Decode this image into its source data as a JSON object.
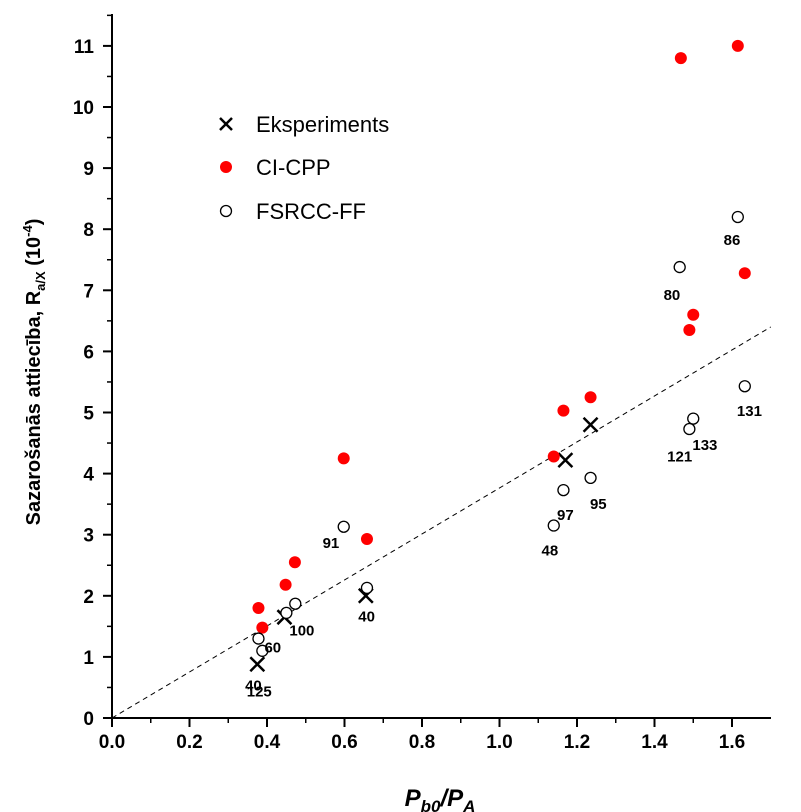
{
  "chart_data": {
    "type": "scatter",
    "xlabel": {
      "main": "P",
      "sub1": "b0",
      "sep": "/P",
      "sub2": "A"
    },
    "ylabel": {
      "main": "Sazarošanās attiecība, R",
      "sub": "a/X",
      "unit_open": " (10",
      "exp": "-4",
      "unit_close": ")"
    },
    "xlim": [
      0.0,
      1.7
    ],
    "ylim": [
      0,
      11.5
    ],
    "x_ticks": [
      "0.0",
      "0.2",
      "0.4",
      "0.6",
      "0.8",
      "1.0",
      "1.2",
      "1.4",
      "1.6"
    ],
    "y_ticks": [
      "0",
      "1",
      "2",
      "3",
      "4",
      "5",
      "6",
      "7",
      "8",
      "9",
      "10",
      "11"
    ],
    "grid": false,
    "legend_position": "upper-left",
    "series": [
      {
        "name": "Eksperiments",
        "marker": "cross",
        "color": "#000000",
        "points": [
          {
            "x": 0.375,
            "y": 0.88
          },
          {
            "x": 0.445,
            "y": 1.65
          },
          {
            "x": 0.655,
            "y": 2.0
          },
          {
            "x": 1.17,
            "y": 4.22
          },
          {
            "x": 1.235,
            "y": 4.8
          }
        ]
      },
      {
        "name": "CI-CPP",
        "marker": "filled-circle",
        "color": "#ff0000",
        "points": [
          {
            "x": 0.378,
            "y": 1.8
          },
          {
            "x": 0.388,
            "y": 1.48
          },
          {
            "x": 0.448,
            "y": 2.18
          },
          {
            "x": 0.472,
            "y": 2.55
          },
          {
            "x": 0.598,
            "y": 4.25
          },
          {
            "x": 0.658,
            "y": 2.93
          },
          {
            "x": 1.14,
            "y": 4.28
          },
          {
            "x": 1.165,
            "y": 5.03
          },
          {
            "x": 1.235,
            "y": 5.25
          },
          {
            "x": 1.468,
            "y": 10.8
          },
          {
            "x": 1.49,
            "y": 6.35
          },
          {
            "x": 1.5,
            "y": 6.6
          },
          {
            "x": 1.615,
            "y": 11.0
          },
          {
            "x": 1.633,
            "y": 7.28
          }
        ]
      },
      {
        "name": "FSRCC-FF",
        "marker": "open-circle",
        "color": "#000000",
        "points": [
          {
            "x": 0.378,
            "y": 1.3
          },
          {
            "x": 0.388,
            "y": 1.1
          },
          {
            "x": 0.45,
            "y": 1.72
          },
          {
            "x": 0.473,
            "y": 1.87
          },
          {
            "x": 0.598,
            "y": 3.13
          },
          {
            "x": 0.658,
            "y": 2.13
          },
          {
            "x": 1.14,
            "y": 3.15
          },
          {
            "x": 1.165,
            "y": 3.73
          },
          {
            "x": 1.235,
            "y": 3.93
          },
          {
            "x": 1.465,
            "y": 7.38
          },
          {
            "x": 1.49,
            "y": 4.73
          },
          {
            "x": 1.5,
            "y": 4.9
          },
          {
            "x": 1.615,
            "y": 8.2
          },
          {
            "x": 1.633,
            "y": 5.43
          }
        ]
      }
    ],
    "trendline": {
      "style": "dashed",
      "color": "#000000",
      "from": [
        0.0,
        0.0
      ],
      "to": [
        1.7,
        6.4
      ]
    },
    "annotations": [
      {
        "text": "40",
        "x": 0.365,
        "y": 0.45
      },
      {
        "text": "125",
        "x": 0.38,
        "y": 0.35
      },
      {
        "text": "60",
        "x": 0.415,
        "y": 1.07
      },
      {
        "text": "100",
        "x": 0.49,
        "y": 1.35
      },
      {
        "text": "40",
        "x": 0.657,
        "y": 1.58
      },
      {
        "text": "91",
        "x": 0.565,
        "y": 2.78
      },
      {
        "text": "48",
        "x": 1.13,
        "y": 2.66
      },
      {
        "text": "97",
        "x": 1.17,
        "y": 3.24
      },
      {
        "text": "95",
        "x": 1.255,
        "y": 3.42
      },
      {
        "text": "80",
        "x": 1.445,
        "y": 6.84
      },
      {
        "text": "121",
        "x": 1.465,
        "y": 4.2
      },
      {
        "text": "133",
        "x": 1.53,
        "y": 4.39
      },
      {
        "text": "86",
        "x": 1.6,
        "y": 7.74
      },
      {
        "text": "131",
        "x": 1.645,
        "y": 4.94
      }
    ]
  }
}
